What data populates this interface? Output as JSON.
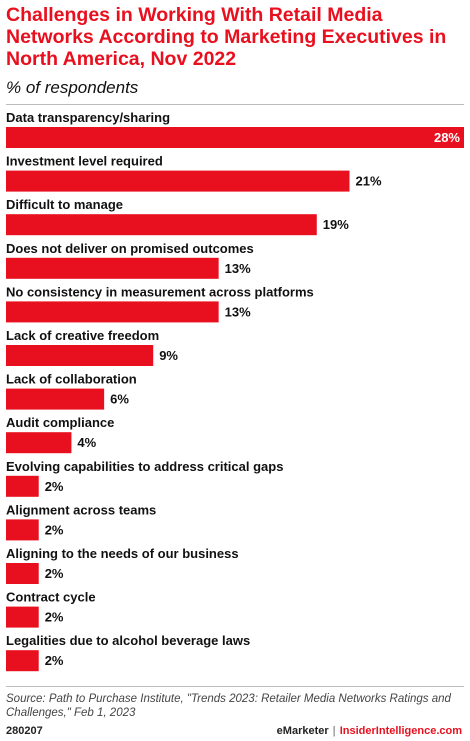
{
  "chart_data": {
    "type": "bar",
    "orientation": "horizontal",
    "title": "Challenges in Working With Retail Media Networks According to Marketing Executives in North America, Nov 2022",
    "subtitle": "% of respondents",
    "categories": [
      "Data transparency/sharing",
      "Investment level required",
      "Difficult to manage",
      "Does not deliver on promised outcomes",
      "No consistency in measurement across platforms",
      "Lack of creative freedom",
      "Lack of collaboration",
      "Audit compliance",
      "Evolving capabilities to address critical gaps",
      "Alignment across teams",
      "Aligning to the needs of our business",
      "Contract cycle",
      "Legalities due to alcohol beverage laws"
    ],
    "values": [
      28,
      21,
      19,
      13,
      13,
      9,
      6,
      4,
      2,
      2,
      2,
      2,
      2
    ],
    "value_labels": [
      "28%",
      "21%",
      "19%",
      "13%",
      "13%",
      "9%",
      "6%",
      "4%",
      "2%",
      "2%",
      "2%",
      "2%",
      "2%"
    ],
    "xlim": [
      0,
      28
    ],
    "bar_color": "#e8101e",
    "grid": false
  },
  "source": "Source: Path to Purchase Institute, \"Trends 2023: Retailer Media Networks Ratings and Challenges,\" Feb 1, 2023",
  "footer": {
    "chart_id": "280207",
    "brand": "eMarketer",
    "separator": "|",
    "brand2": "InsiderIntelligence.com"
  }
}
